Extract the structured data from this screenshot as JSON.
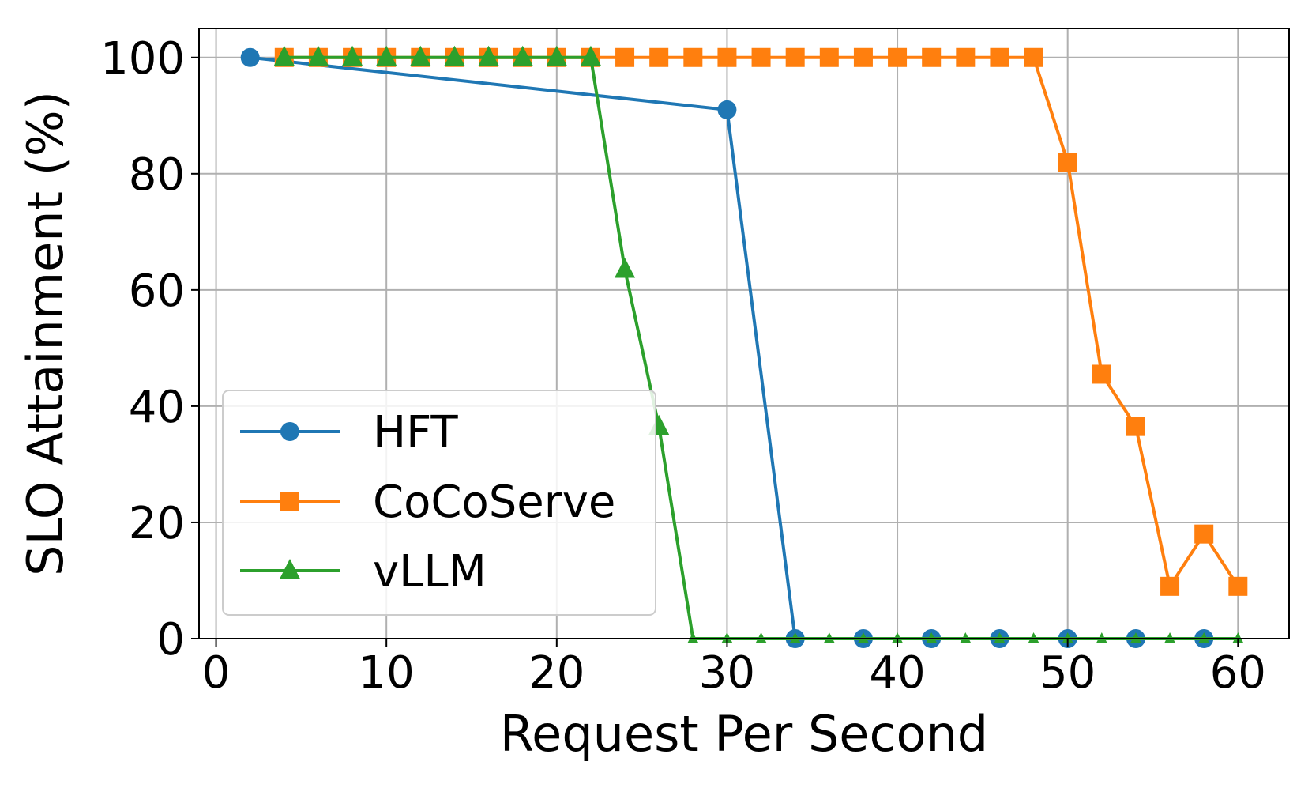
{
  "chart_data": {
    "type": "line",
    "xlabel": "Request Per Second",
    "ylabel": "SLO Attainment (%)",
    "xlim": [
      -1,
      63
    ],
    "ylim": [
      0,
      105
    ],
    "xticks": [
      0,
      10,
      20,
      30,
      40,
      50,
      60
    ],
    "yticks": [
      0,
      20,
      40,
      60,
      80,
      100
    ],
    "grid": true,
    "legend_position": "center-left",
    "series": [
      {
        "name": "HFT",
        "color": "#1f77b4",
        "marker": "circle",
        "x": [
          2,
          30,
          34,
          38,
          42,
          46,
          50,
          54,
          58
        ],
        "values": [
          100,
          91,
          0,
          0,
          0,
          0,
          0,
          0,
          0
        ]
      },
      {
        "name": "CoCoServe",
        "color": "#ff7f0e",
        "marker": "square",
        "x": [
          4,
          6,
          8,
          10,
          12,
          14,
          16,
          18,
          20,
          22,
          24,
          26,
          28,
          30,
          32,
          34,
          36,
          38,
          40,
          42,
          44,
          46,
          48,
          50,
          52,
          54,
          56,
          58,
          60
        ],
        "values": [
          100,
          100,
          100,
          100,
          100,
          100,
          100,
          100,
          100,
          100,
          100,
          100,
          100,
          100,
          100,
          100,
          100,
          100,
          100,
          100,
          100,
          100,
          100,
          82,
          45.5,
          36.5,
          9,
          18,
          9
        ]
      },
      {
        "name": "vLLM",
        "color": "#2ca02c",
        "marker": "triangle",
        "x": [
          4,
          6,
          8,
          10,
          12,
          14,
          16,
          18,
          20,
          22,
          24,
          26,
          28,
          30,
          32,
          34,
          36,
          38,
          40,
          42,
          44,
          46,
          48,
          50,
          52,
          54,
          56,
          58,
          60
        ],
        "values": [
          100,
          100,
          100,
          100,
          100,
          100,
          100,
          100,
          100,
          100,
          63.5,
          36.5,
          0,
          0,
          0,
          0,
          0,
          0,
          0,
          0,
          0,
          0,
          0,
          0,
          0,
          0,
          0,
          0,
          0
        ]
      }
    ]
  }
}
